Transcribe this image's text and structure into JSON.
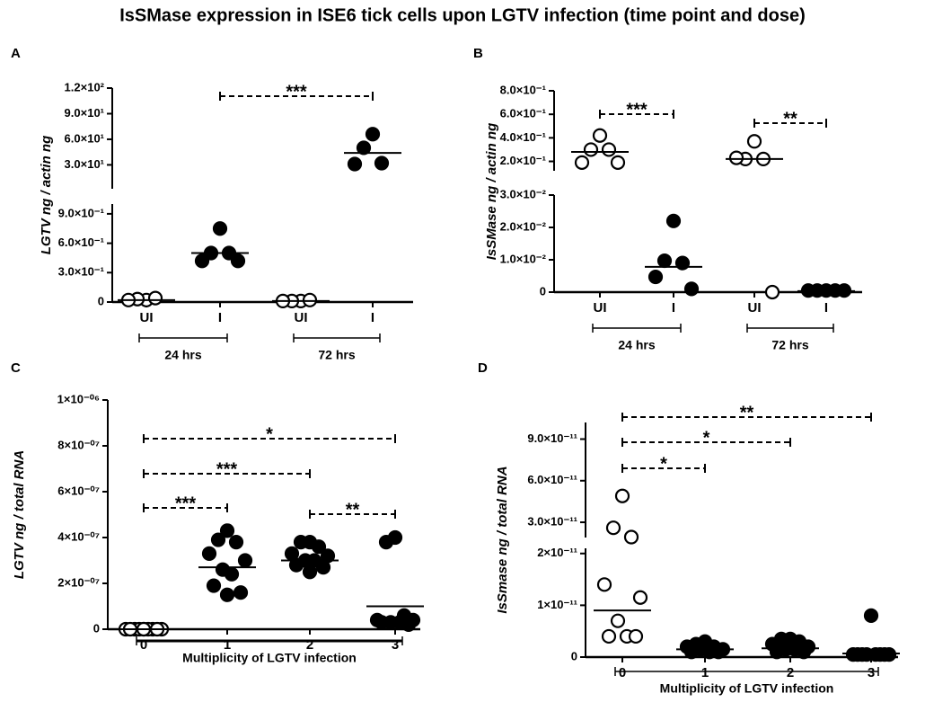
{
  "title": "IsSMase expression in ISE6 tick cells upon LGTV infection (time point and dose)",
  "chart_data": [
    {
      "type": "scatter",
      "panel": "A",
      "ylabel": "LGTV ng / actin ng",
      "color": "#000000",
      "categories": [
        "UI",
        "I",
        "UI",
        "I"
      ],
      "filled": [
        false,
        true,
        false,
        true
      ],
      "groups": [
        {
          "label": "24 hrs",
          "categories": [
            0,
            1
          ]
        },
        {
          "label": "72 hrs",
          "categories": [
            2,
            3
          ]
        }
      ],
      "axis_segments": [
        {
          "ylim": [
            0,
            1
          ],
          "yticks": [
            0,
            {
              "value": 0.3,
              "label": "3.0×10⁻¹"
            },
            {
              "value": 0.6,
              "label": "6.0×10⁻¹"
            },
            {
              "value": 0.9,
              "label": "9.0×10⁻¹"
            }
          ]
        },
        {
          "ylim": [
            2,
            120
          ],
          "yticks": [
            {
              "value": 30,
              "label": "3.0×10¹"
            },
            {
              "value": 60,
              "label": "6.0×10¹"
            },
            {
              "value": 90,
              "label": "9.0×10¹"
            },
            {
              "value": 120,
              "label": "1.2×10²"
            }
          ]
        }
      ],
      "values": [
        [
          0.02,
          0.03,
          0.04,
          0.02
        ],
        [
          0.75,
          0.5,
          0.5,
          0.42,
          0.42
        ],
        [
          0.01,
          0.01,
          0.02,
          0.01
        ],
        [
          66,
          50,
          32,
          31
        ]
      ],
      "medians": [
        0.02,
        0.5,
        0.01,
        44
      ],
      "comparisons": [
        {
          "from": 1,
          "to": 3,
          "label": "***"
        }
      ]
    },
    {
      "type": "scatter",
      "panel": "B",
      "ylabel": "IsSMase ng / actin ng",
      "color": "#000000",
      "categories": [
        "UI",
        "I",
        "UI",
        "I"
      ],
      "filled": [
        false,
        true,
        false,
        true
      ],
      "groups": [
        {
          "label": "24 hrs",
          "categories": [
            0,
            1
          ]
        },
        {
          "label": "72 hrs",
          "categories": [
            2,
            3
          ]
        }
      ],
      "axis_segments": [
        {
          "ylim": [
            0,
            0.03
          ],
          "yticks": [
            0,
            {
              "value": 0.01,
              "label": "1.0×10⁻²"
            },
            {
              "value": 0.02,
              "label": "2.0×10⁻²"
            },
            {
              "value": 0.03,
              "label": "3.0×10⁻²"
            }
          ]
        },
        {
          "ylim": [
            0.12,
            0.8
          ],
          "yticks": [
            {
              "value": 0.2,
              "label": "2.0×10⁻¹"
            },
            {
              "value": 0.4,
              "label": "4.0×10⁻¹"
            },
            {
              "value": 0.6,
              "label": "6.0×10⁻¹"
            },
            {
              "value": 0.8,
              "label": "8.0×10⁻¹"
            }
          ]
        }
      ],
      "values": [
        [
          0.42,
          0.3,
          0.3,
          0.19,
          0.19
        ],
        [
          0.022,
          0.0097,
          0.009,
          0.0047,
          0.001
        ],
        [
          0.37,
          0.22,
          0.22,
          0.23,
          0
        ],
        [
          0.0005,
          0.0005,
          0.0005,
          0.0005,
          0.0005
        ]
      ],
      "medians": [
        0.28,
        0.0078,
        0.22,
        0.0003
      ],
      "comparisons": [
        {
          "from": 0,
          "to": 1,
          "label": "***"
        },
        {
          "from": 2,
          "to": 3,
          "label": "**"
        }
      ]
    },
    {
      "type": "scatter",
      "panel": "C",
      "ylabel": "LGTV ng / total RNA",
      "color": "#000000",
      "categories": [
        "0",
        "1",
        "2",
        "3"
      ],
      "filled": [
        false,
        true,
        true,
        true
      ],
      "groups": [
        {
          "label": "Multiplicity of LGTV infection",
          "categories": [
            0,
            1,
            2,
            3
          ]
        }
      ],
      "axis_segments": [
        {
          "ylim": [
            0,
            1e-06
          ],
          "yticks": [
            0,
            {
              "value": 2e-07,
              "label": "2×10⁻⁰⁷"
            },
            {
              "value": 4e-07,
              "label": "4×10⁻⁰⁷"
            },
            {
              "value": 6e-07,
              "label": "6×10⁻⁰⁷"
            },
            {
              "value": 8e-07,
              "label": "8×10⁻⁰⁷"
            },
            {
              "value": 1e-06,
              "label": "1×10⁻⁰⁶"
            }
          ]
        }
      ],
      "values": [
        [
          0,
          0,
          0,
          0,
          0,
          0,
          0,
          0,
          0,
          0
        ],
        [
          4.3e-07,
          3.9e-07,
          3.8e-07,
          3.3e-07,
          3e-07,
          2.6e-07,
          2.4e-07,
          1.9e-07,
          1.6e-07,
          1.5e-07
        ],
        [
          3.8e-07,
          3.8e-07,
          3.6e-07,
          3.3e-07,
          3.2e-07,
          3e-07,
          3e-07,
          2.8e-07,
          2.7e-07,
          2.5e-07
        ],
        [
          4e-07,
          3.8e-07,
          6e-08,
          4e-08,
          4e-08,
          3e-08,
          3e-08,
          3e-08,
          2e-08
        ]
      ],
      "medians": [
        0,
        2.7e-07,
        3e-07,
        1e-07
      ],
      "comparisons": [
        {
          "from": 0,
          "to": 1,
          "label": "***"
        },
        {
          "from": 0,
          "to": 2,
          "label": "***"
        },
        {
          "from": 0,
          "to": 3,
          "label": "*"
        },
        {
          "from": 2,
          "to": 3,
          "label": "**"
        }
      ]
    },
    {
      "type": "scatter",
      "panel": "D",
      "ylabel": "IsSmase ng / total RNA",
      "color": "#000000",
      "categories": [
        "0",
        "1",
        "2",
        "3"
      ],
      "filled": [
        false,
        true,
        true,
        true
      ],
      "groups": [
        {
          "label": "Multiplicity of LGTV infection",
          "categories": [
            0,
            1,
            2,
            3
          ]
        }
      ],
      "axis_segments": [
        {
          "ylim": [
            0,
            2.1e-11
          ],
          "yticks": [
            0,
            {
              "value": 1e-11,
              "label": "1×10⁻¹¹"
            },
            {
              "value": 2e-11,
              "label": "2×10⁻¹¹"
            }
          ]
        },
        {
          "ylim": [
            1.9e-11,
            1.02e-10
          ],
          "yticks": [
            {
              "value": 3e-11,
              "label": "3.0×10⁻¹¹"
            },
            {
              "value": 6e-11,
              "label": "6.0×10⁻¹¹"
            },
            {
              "value": 9e-11,
              "label": "9.0×10⁻¹¹"
            }
          ]
        }
      ],
      "values": [
        [
          4.9e-11,
          2.6e-11,
          1.93e-11,
          1.4e-11,
          1.15e-11,
          7e-12,
          4e-12,
          4e-12,
          4e-12
        ],
        [
          3e-12,
          2.5e-12,
          2e-12,
          2e-12,
          1.5e-12,
          1.5e-12,
          1e-12,
          1e-12,
          1e-12
        ],
        [
          3.5e-12,
          3.5e-12,
          3e-12,
          2.5e-12,
          2e-12,
          1.5e-12,
          1.5e-12,
          1e-12,
          1e-12
        ],
        [
          8e-12,
          5e-13,
          5e-13,
          5e-13,
          5e-13,
          5e-13,
          5e-13,
          5e-13,
          5e-13
        ]
      ],
      "medians": [
        9e-12,
        1.5e-12,
        1.7e-12,
        7e-13
      ],
      "comparisons": [
        {
          "from": 0,
          "to": 1,
          "label": "*"
        },
        {
          "from": 0,
          "to": 2,
          "label": "*"
        },
        {
          "from": 0,
          "to": 3,
          "label": "**"
        }
      ]
    }
  ]
}
